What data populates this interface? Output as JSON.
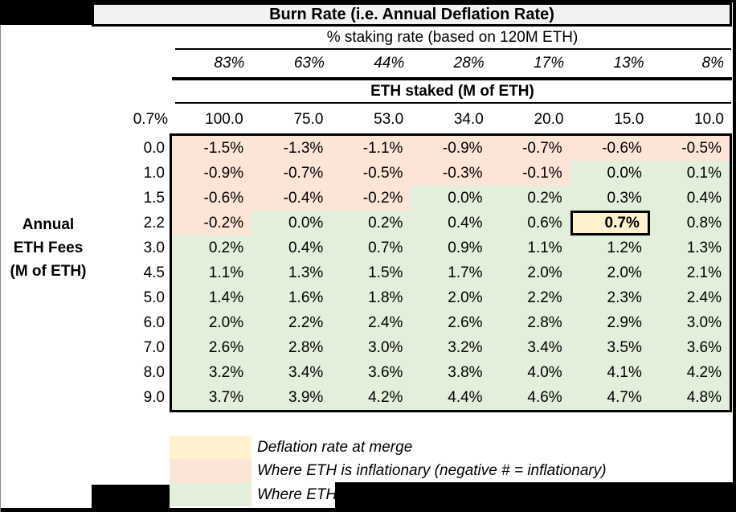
{
  "title": "Burn Rate (i.e. Annual Deflation Rate)",
  "staking_header": "% staking rate (based on 120M ETH)",
  "staking_rates": [
    "83%",
    "63%",
    "44%",
    "28%",
    "17%",
    "13%",
    "8%"
  ],
  "eth_staked_header": "ETH staked (M of ETH)",
  "merge_rate_label": "0.7%",
  "eth_staked_values": [
    "100.0",
    "75.0",
    "53.0",
    "34.0",
    "20.0",
    "15.0",
    "10.0"
  ],
  "y_axis_label_lines": [
    "Annual",
    "ETH Fees",
    "(M of ETH)"
  ],
  "fee_rows": [
    {
      "fee": "0.0",
      "values": [
        "-1.5%",
        "-1.3%",
        "-1.1%",
        "-0.9%",
        "-0.7%",
        "-0.6%",
        "-0.5%"
      ],
      "colors": [
        "p",
        "p",
        "p",
        "p",
        "p",
        "p",
        "p"
      ]
    },
    {
      "fee": "1.0",
      "values": [
        "-0.9%",
        "-0.7%",
        "-0.5%",
        "-0.3%",
        "-0.1%",
        "0.0%",
        "0.1%"
      ],
      "colors": [
        "p",
        "p",
        "p",
        "p",
        "p",
        "g",
        "g"
      ]
    },
    {
      "fee": "1.5",
      "values": [
        "-0.6%",
        "-0.4%",
        "-0.2%",
        "0.0%",
        "0.2%",
        "0.3%",
        "0.4%"
      ],
      "colors": [
        "p",
        "p",
        "p",
        "g",
        "g",
        "g",
        "g"
      ]
    },
    {
      "fee": "2.2",
      "values": [
        "-0.2%",
        "0.0%",
        "0.2%",
        "0.4%",
        "0.6%",
        "0.7%",
        "0.8%"
      ],
      "colors": [
        "p",
        "g",
        "g",
        "g",
        "g",
        "y",
        "g"
      ]
    },
    {
      "fee": "3.0",
      "values": [
        "0.2%",
        "0.4%",
        "0.7%",
        "0.9%",
        "1.1%",
        "1.2%",
        "1.3%"
      ],
      "colors": [
        "g",
        "g",
        "g",
        "g",
        "g",
        "g",
        "g"
      ]
    },
    {
      "fee": "4.5",
      "values": [
        "1.1%",
        "1.3%",
        "1.5%",
        "1.7%",
        "2.0%",
        "2.0%",
        "2.1%"
      ],
      "colors": [
        "g",
        "g",
        "g",
        "g",
        "g",
        "g",
        "g"
      ]
    },
    {
      "fee": "5.0",
      "values": [
        "1.4%",
        "1.6%",
        "1.8%",
        "2.0%",
        "2.2%",
        "2.3%",
        "2.4%"
      ],
      "colors": [
        "g",
        "g",
        "g",
        "g",
        "g",
        "g",
        "g"
      ]
    },
    {
      "fee": "6.0",
      "values": [
        "2.0%",
        "2.2%",
        "2.4%",
        "2.6%",
        "2.8%",
        "2.9%",
        "3.0%"
      ],
      "colors": [
        "g",
        "g",
        "g",
        "g",
        "g",
        "g",
        "g"
      ]
    },
    {
      "fee": "7.0",
      "values": [
        "2.6%",
        "2.8%",
        "3.0%",
        "3.2%",
        "3.4%",
        "3.5%",
        "3.6%"
      ],
      "colors": [
        "g",
        "g",
        "g",
        "g",
        "g",
        "g",
        "g"
      ]
    },
    {
      "fee": "8.0",
      "values": [
        "3.2%",
        "3.4%",
        "3.6%",
        "3.8%",
        "4.0%",
        "4.1%",
        "4.2%"
      ],
      "colors": [
        "g",
        "g",
        "g",
        "g",
        "g",
        "g",
        "g"
      ]
    },
    {
      "fee": "9.0",
      "values": [
        "3.7%",
        "3.9%",
        "4.2%",
        "4.4%",
        "4.6%",
        "4.7%",
        "4.8%"
      ],
      "colors": [
        "g",
        "g",
        "g",
        "g",
        "g",
        "g",
        "g"
      ]
    }
  ],
  "legend": [
    {
      "color": "#fff2cc",
      "label": "Deflation rate at merge"
    },
    {
      "color": "#fce4d6",
      "label": "Where ETH is inflationary (negative # = inflationary)"
    },
    {
      "color": "#e2efda",
      "label": "Where ETH"
    }
  ],
  "colors": {
    "inflationary": "#fce4d6",
    "deflationary": "#e2efda",
    "merge_highlight": "#fff2cc",
    "header_bg": "#f2f2f2",
    "border": "#000000"
  },
  "chart_data": {
    "type": "heatmap",
    "title": "Burn Rate (i.e. Annual Deflation Rate)",
    "x_axis_label_top": "% staking rate (based on 120M ETH)",
    "x_axis_label_bottom": "ETH staked (M of ETH)",
    "y_axis_label": "Annual ETH Fees (M of ETH)",
    "columns_staking_rate_pct": [
      83,
      63,
      44,
      28,
      17,
      13,
      8
    ],
    "columns_eth_staked_m": [
      100.0,
      75.0,
      53.0,
      34.0,
      20.0,
      15.0,
      10.0
    ],
    "merge_row_header_pct": 0.7,
    "rows_annual_eth_fees_m": [
      0.0,
      1.0,
      1.5,
      2.2,
      3.0,
      4.5,
      5.0,
      6.0,
      7.0,
      8.0,
      9.0
    ],
    "values_burn_rate_pct": [
      [
        -1.5,
        -1.3,
        -1.1,
        -0.9,
        -0.7,
        -0.6,
        -0.5
      ],
      [
        -0.9,
        -0.7,
        -0.5,
        -0.3,
        -0.1,
        0.0,
        0.1
      ],
      [
        -0.6,
        -0.4,
        -0.2,
        0.0,
        0.2,
        0.3,
        0.4
      ],
      [
        -0.2,
        0.0,
        0.2,
        0.4,
        0.6,
        0.7,
        0.8
      ],
      [
        0.2,
        0.4,
        0.7,
        0.9,
        1.1,
        1.2,
        1.3
      ],
      [
        1.1,
        1.3,
        1.5,
        1.7,
        2.0,
        2.0,
        2.1
      ],
      [
        1.4,
        1.6,
        1.8,
        2.0,
        2.2,
        2.3,
        2.4
      ],
      [
        2.0,
        2.2,
        2.4,
        2.6,
        2.8,
        2.9,
        3.0
      ],
      [
        2.6,
        2.8,
        3.0,
        3.2,
        3.4,
        3.5,
        3.6
      ],
      [
        3.2,
        3.4,
        3.6,
        3.8,
        4.0,
        4.1,
        4.2
      ],
      [
        3.7,
        3.9,
        4.2,
        4.4,
        4.6,
        4.7,
        4.8
      ]
    ],
    "highlighted_cell": {
      "row_fee_m": 2.2,
      "column_staking_rate_pct": 13,
      "value_pct": 0.7,
      "legend_label": "Deflation rate at merge"
    },
    "legend": [
      {
        "color": "#fff2cc",
        "label": "Deflation rate at merge"
      },
      {
        "color": "#fce4d6",
        "label": "Where ETH is inflationary (negative # = inflationary)"
      },
      {
        "color": "#e2efda",
        "label": "Where ETH"
      }
    ]
  }
}
